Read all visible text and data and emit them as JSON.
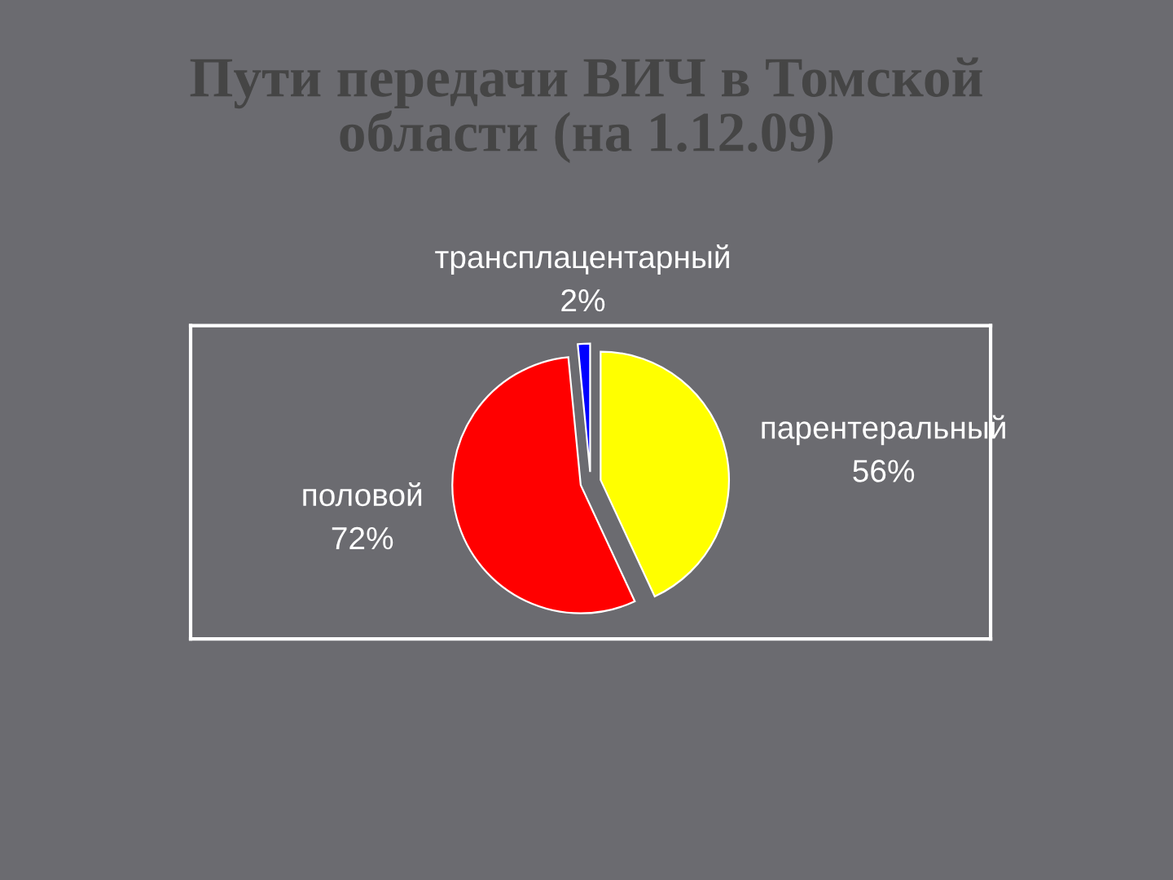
{
  "chart_data": {
    "type": "pie",
    "title": "Пути передачи ВИЧ в Томской\nобласти (на 1.12.09)",
    "categories": [
      "парентеральный",
      "половой",
      "трансплацентарный"
    ],
    "values": [
      56,
      72,
      2
    ],
    "colors": [
      "#ffff00",
      "#ff0000",
      "#0000ff"
    ],
    "value_labels": [
      "56%",
      "72%",
      "2%"
    ]
  }
}
